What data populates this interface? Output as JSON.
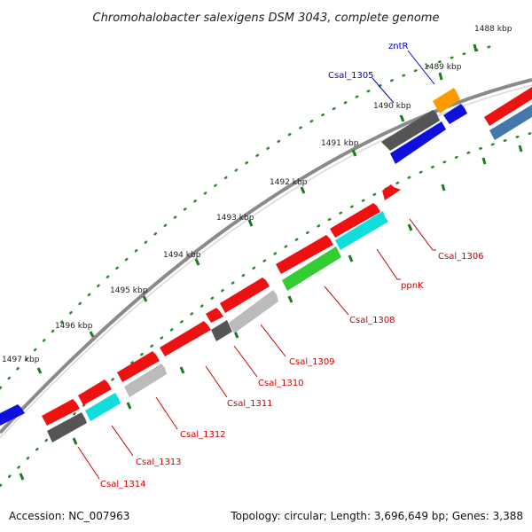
{
  "title": "Chromohalobacter salexigens DSM 3043, complete genome",
  "accession": "Accession: NC_007963",
  "summary": "Topology: circular; Length: 3,696,649 bp; Genes: 3,388",
  "colors": {
    "backbone": "#888888",
    "ruler": "#2b8a2b",
    "label_red": "#cc0000",
    "label_blue": "#0000cc",
    "gene_red": "#ee1111",
    "gene_blue": "#1010dd",
    "gene_steel": "#4477aa",
    "gene_orange": "#ff9900",
    "gene_darkgray": "#555555",
    "gene_lightgray": "#bbbbbb",
    "gene_cyan": "#11dddd",
    "gene_green": "#33cc33"
  },
  "ruler_ticks": [
    "1488 kbp",
    "1489 kbp",
    "1490 kbp",
    "1491 kbp",
    "1492 kbp",
    "1493 kbp",
    "1494 kbp",
    "1495 kbp",
    "1496 kbp",
    "1497 kbp"
  ],
  "gene_labels": [
    {
      "text": "zntR",
      "color": "blue"
    },
    {
      "text": "Csal_1305",
      "color": "blue"
    },
    {
      "text": "Csal_1306",
      "color": "red"
    },
    {
      "text": "ppnK",
      "color": "red"
    },
    {
      "text": "Csal_1308",
      "color": "red"
    },
    {
      "text": "Csal_1309",
      "color": "red"
    },
    {
      "text": "Csal_1310",
      "color": "red"
    },
    {
      "text": "Csal_1311",
      "color": "red"
    },
    {
      "text": "Csal_1312",
      "color": "red"
    },
    {
      "text": "Csal_1313",
      "color": "red"
    },
    {
      "text": "Csal_1314",
      "color": "red"
    }
  ]
}
